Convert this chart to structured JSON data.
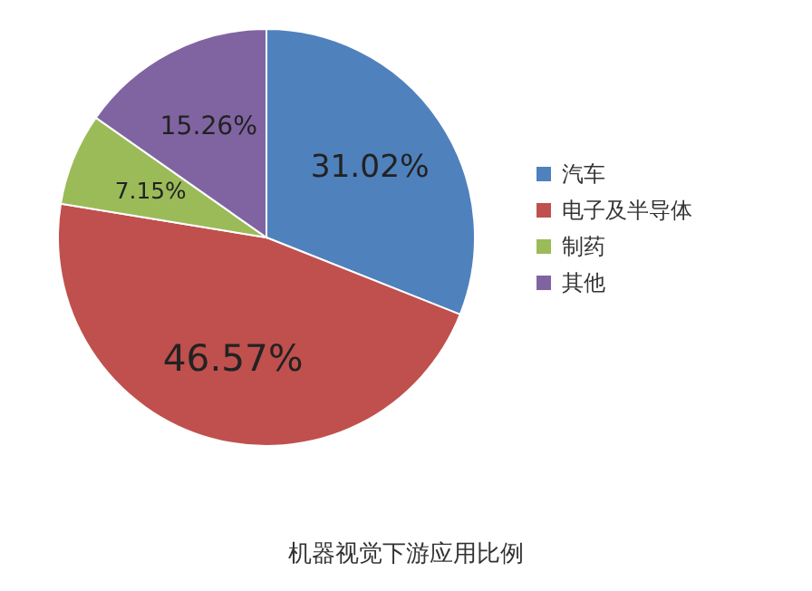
{
  "chart_data": {
    "type": "pie",
    "title": "机器视觉下游应用比例",
    "categories": [
      "汽车",
      "电子及半导体",
      "制药",
      "其他"
    ],
    "values": [
      31.02,
      46.57,
      7.15,
      15.26
    ],
    "colors": [
      "#4f81bd",
      "#c0504d",
      "#9bbb59",
      "#8064a2"
    ],
    "value_labels": [
      "31.02%",
      "46.57%",
      "7.15%",
      "15.26%"
    ],
    "legend": "right"
  }
}
